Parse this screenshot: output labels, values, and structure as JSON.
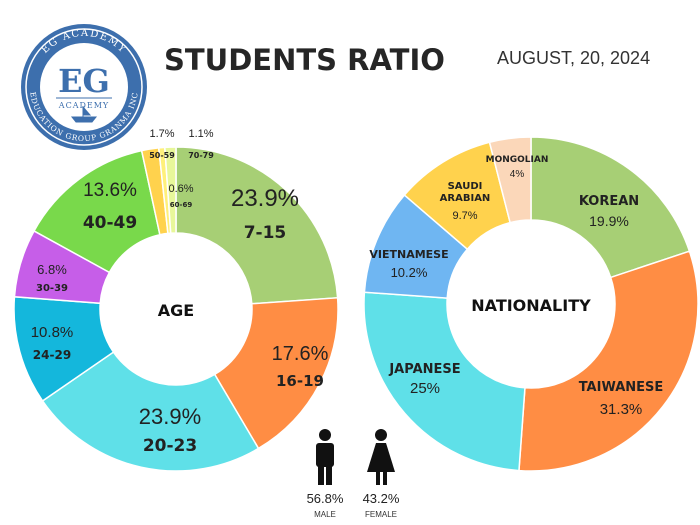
{
  "header": {
    "title": "STUDENTS RATIO",
    "date": "AUGUST, 20, 2024"
  },
  "logo": {
    "initials": "EG",
    "ring_top": "EG ACADEMY",
    "ring_bottom": "EDUCATION GROUP GRANMA INC",
    "word": "ACADEMY",
    "color": "#3d6fad"
  },
  "gender": [
    {
      "label": "MALE",
      "value": "56.8%",
      "icon": "male-icon"
    },
    {
      "label": "FEMALE",
      "value": "43.2%",
      "icon": "female-icon"
    }
  ],
  "chart_data": [
    {
      "type": "pie",
      "title": "",
      "center_label": "AGE",
      "categories": [
        "7-15",
        "16-19",
        "20-23",
        "24-29",
        "30-39",
        "40-49",
        "50-59",
        "60-69",
        "70-79"
      ],
      "values": [
        23.9,
        17.6,
        23.9,
        10.8,
        6.8,
        13.6,
        1.7,
        0.6,
        1.1
      ],
      "labels": [
        "23.9%",
        "17.6%",
        "23.9%",
        "10.8%",
        "6.8%",
        "13.6%",
        "1.7%",
        "0.6%",
        "1.1%"
      ],
      "colors": [
        "#a7cf75",
        "#ff8d44",
        "#5fe0e8",
        "#14b7dc",
        "#c65ee8",
        "#79d94b",
        "#ffd24d",
        "#fff07a",
        "#e8f79a"
      ]
    },
    {
      "type": "pie",
      "title": "",
      "center_label": "NATIONALITY",
      "categories": [
        "KOREAN",
        "TAIWANESE",
        "JAPANESE",
        "VIETNAMESE",
        "SAUDI ARABIAN",
        "MONGOLIAN"
      ],
      "values": [
        19.9,
        31.3,
        25,
        10.2,
        9.7,
        4
      ],
      "labels": [
        "19.9%",
        "31.3%",
        "25%",
        "10.2%",
        "9.7%",
        "4%"
      ],
      "colors": [
        "#a7cf75",
        "#ff8d44",
        "#5fe0e8",
        "#6fb6f2",
        "#ffd24d",
        "#fbd7b9"
      ]
    }
  ]
}
